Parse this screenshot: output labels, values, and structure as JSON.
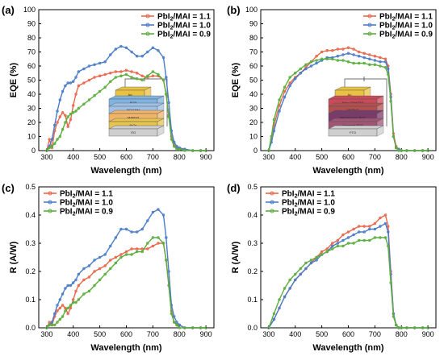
{
  "colors": {
    "s11": "#e8674a",
    "s10": "#4a7cc9",
    "s09": "#5aae3c"
  },
  "chart_data": [
    {
      "panel": "(a)",
      "type": "line",
      "xlabel": "Wavelength (nm)",
      "ylabel": "EQE (%)",
      "xlim": [
        270,
        930
      ],
      "ylim": [
        0,
        100
      ],
      "xticks": [
        300,
        400,
        500,
        600,
        700,
        800,
        900
      ],
      "yticks": [
        0,
        10,
        20,
        30,
        40,
        50,
        60,
        70,
        80,
        90,
        100
      ],
      "legend_position": "top-right",
      "inset": {
        "layers": [
          "Ag",
          "BCP",
          "PC61BM",
          "MAPbI3",
          "NiOx",
          "ITO"
        ]
      },
      "series": [
        {
          "name": "PbI2/MAI = 1.1",
          "color_key": "s11",
          "x": [
            300,
            310,
            320,
            330,
            340,
            350,
            360,
            370,
            380,
            390,
            400,
            410,
            420,
            440,
            460,
            480,
            500,
            520,
            540,
            560,
            580,
            600,
            620,
            640,
            660,
            680,
            700,
            720,
            740,
            750,
            760,
            770,
            780,
            790,
            800,
            820,
            850,
            880,
            900
          ],
          "y": [
            0,
            8,
            2,
            14,
            20,
            24,
            27,
            25,
            17,
            22,
            32,
            40,
            46,
            48,
            50,
            52,
            53,
            54,
            55,
            56,
            56,
            57,
            56,
            55,
            53,
            52,
            53,
            53,
            50,
            40,
            25,
            10,
            4,
            2,
            1,
            1,
            0,
            0,
            0
          ]
        },
        {
          "name": "PbI2/MAI = 1.0",
          "color_key": "s10",
          "x": [
            300,
            310,
            320,
            330,
            340,
            350,
            360,
            370,
            380,
            390,
            400,
            410,
            420,
            440,
            460,
            480,
            500,
            520,
            540,
            560,
            580,
            600,
            620,
            640,
            660,
            680,
            700,
            720,
            740,
            750,
            760,
            770,
            780,
            790,
            800,
            820,
            850,
            880,
            900
          ],
          "y": [
            0,
            3,
            8,
            18,
            28,
            36,
            42,
            46,
            48,
            48,
            49,
            52,
            56,
            58,
            60,
            61,
            62,
            63,
            68,
            72,
            74,
            73,
            70,
            67,
            67,
            70,
            73,
            71,
            66,
            52,
            34,
            14,
            6,
            3,
            2,
            1,
            0,
            0,
            0
          ]
        },
        {
          "name": "PbI2/MAI = 0.9",
          "color_key": "s09",
          "x": [
            300,
            310,
            320,
            330,
            340,
            350,
            360,
            370,
            380,
            390,
            400,
            410,
            420,
            440,
            460,
            480,
            500,
            520,
            540,
            560,
            580,
            600,
            620,
            640,
            660,
            680,
            700,
            720,
            740,
            750,
            760,
            770,
            780,
            790,
            800,
            820,
            850,
            880,
            900
          ],
          "y": [
            0,
            2,
            3,
            5,
            8,
            10,
            15,
            20,
            24,
            26,
            27,
            28,
            30,
            33,
            36,
            39,
            42,
            45,
            49,
            52,
            53,
            54,
            52,
            51,
            50,
            53,
            56,
            54,
            50,
            40,
            24,
            8,
            3,
            1,
            1,
            0,
            0,
            0,
            0
          ]
        }
      ]
    },
    {
      "panel": "(b)",
      "type": "line",
      "xlabel": "Wavelength (nm)",
      "ylabel": "EQE (%)",
      "xlim": [
        270,
        930
      ],
      "ylim": [
        0,
        100
      ],
      "xticks": [
        300,
        400,
        500,
        600,
        700,
        800,
        900
      ],
      "yticks": [
        0,
        10,
        20,
        30,
        40,
        50,
        60,
        70,
        80,
        90,
        100
      ],
      "legend_position": "top-right",
      "inset": {
        "layers": [
          "Au",
          "Spiro-OMeTAD",
          "MAPbI3",
          "Mesoporous TiO2",
          "Compact TiO2",
          "FTO"
        ]
      },
      "series": [
        {
          "name": "PbI2/MAI = 1.1",
          "color_key": "s11",
          "x": [
            300,
            310,
            320,
            340,
            360,
            380,
            400,
            420,
            440,
            460,
            480,
            500,
            520,
            540,
            560,
            580,
            600,
            620,
            640,
            660,
            680,
            700,
            720,
            740,
            750,
            760,
            770,
            780,
            790,
            800,
            820,
            850,
            880,
            900
          ],
          "y": [
            0,
            8,
            18,
            32,
            42,
            48,
            52,
            55,
            59,
            63,
            67,
            70,
            71,
            71,
            72,
            72,
            73,
            72,
            70,
            69,
            68,
            67,
            66,
            65,
            60,
            40,
            12,
            3,
            1,
            0,
            0,
            0,
            0,
            0
          ]
        },
        {
          "name": "PbI2/MAI = 1.0",
          "color_key": "s10",
          "x": [
            300,
            310,
            320,
            340,
            360,
            380,
            400,
            420,
            440,
            460,
            480,
            500,
            520,
            540,
            560,
            580,
            600,
            620,
            640,
            660,
            680,
            700,
            720,
            740,
            750,
            760,
            770,
            780,
            790,
            800,
            820,
            850,
            880,
            900
          ],
          "y": [
            0,
            6,
            14,
            28,
            38,
            46,
            51,
            55,
            58,
            60,
            62,
            64,
            66,
            66,
            67,
            68,
            69,
            68,
            67,
            66,
            65,
            64,
            63,
            63,
            58,
            38,
            10,
            2,
            1,
            0,
            0,
            0,
            0,
            0
          ]
        },
        {
          "name": "PbI2/MAI = 0.9",
          "color_key": "s09",
          "x": [
            300,
            310,
            320,
            340,
            360,
            380,
            400,
            420,
            440,
            460,
            480,
            500,
            520,
            540,
            560,
            580,
            600,
            620,
            640,
            660,
            680,
            700,
            720,
            740,
            750,
            760,
            770,
            780,
            790,
            800,
            820,
            850,
            880,
            900
          ],
          "y": [
            0,
            10,
            22,
            36,
            45,
            52,
            55,
            58,
            61,
            63,
            64,
            65,
            65,
            65,
            64,
            64,
            63,
            62,
            62,
            62,
            61,
            61,
            60,
            59,
            54,
            35,
            10,
            2,
            0,
            0,
            0,
            0,
            0,
            0
          ]
        }
      ]
    },
    {
      "panel": "(c)",
      "type": "line",
      "xlabel": "Wavelength (nm)",
      "ylabel": "R (A/W)",
      "xlim": [
        270,
        930
      ],
      "ylim": [
        0,
        0.5
      ],
      "xticks": [
        300,
        400,
        500,
        600,
        700,
        800,
        900
      ],
      "yticks": [
        0.0,
        0.1,
        0.2,
        0.3,
        0.4,
        0.5
      ],
      "legend_position": "top-left",
      "series": [
        {
          "name": "PbI2/MAI = 1.1",
          "color_key": "s11",
          "x": [
            300,
            310,
            320,
            330,
            340,
            350,
            360,
            370,
            380,
            390,
            400,
            410,
            420,
            440,
            460,
            480,
            500,
            520,
            540,
            560,
            580,
            600,
            620,
            640,
            660,
            680,
            700,
            720,
            740,
            750,
            760,
            770,
            780,
            790,
            800,
            820,
            850,
            880,
            900
          ],
          "y": [
            0,
            0.02,
            0.01,
            0.04,
            0.06,
            0.07,
            0.08,
            0.07,
            0.05,
            0.07,
            0.1,
            0.13,
            0.15,
            0.17,
            0.18,
            0.2,
            0.21,
            0.22,
            0.24,
            0.25,
            0.26,
            0.27,
            0.28,
            0.28,
            0.28,
            0.28,
            0.29,
            0.3,
            0.3,
            0.24,
            0.15,
            0.06,
            0.02,
            0.01,
            0.01,
            0,
            0,
            0,
            0
          ]
        },
        {
          "name": "PbI2/MAI = 1.0",
          "color_key": "s10",
          "x": [
            300,
            310,
            320,
            330,
            340,
            350,
            360,
            370,
            380,
            390,
            400,
            410,
            420,
            440,
            460,
            480,
            500,
            520,
            540,
            560,
            580,
            600,
            620,
            640,
            660,
            680,
            700,
            720,
            740,
            750,
            760,
            770,
            780,
            790,
            800,
            820,
            850,
            880,
            900
          ],
          "y": [
            0,
            0.01,
            0.02,
            0.05,
            0.08,
            0.1,
            0.12,
            0.14,
            0.15,
            0.15,
            0.16,
            0.17,
            0.19,
            0.21,
            0.22,
            0.24,
            0.25,
            0.26,
            0.29,
            0.32,
            0.35,
            0.35,
            0.34,
            0.34,
            0.35,
            0.38,
            0.41,
            0.42,
            0.4,
            0.32,
            0.2,
            0.08,
            0.04,
            0.02,
            0.01,
            0,
            0,
            0,
            0
          ]
        },
        {
          "name": "PbI2/MAI = 0.9",
          "color_key": "s09",
          "x": [
            300,
            310,
            320,
            330,
            340,
            350,
            360,
            370,
            380,
            390,
            400,
            410,
            420,
            440,
            460,
            480,
            500,
            520,
            540,
            560,
            580,
            600,
            620,
            640,
            660,
            680,
            700,
            720,
            740,
            750,
            760,
            770,
            780,
            790,
            800,
            820,
            850,
            880,
            900
          ],
          "y": [
            0,
            0.01,
            0.01,
            0.01,
            0.02,
            0.03,
            0.04,
            0.06,
            0.07,
            0.08,
            0.09,
            0.09,
            0.1,
            0.12,
            0.13,
            0.15,
            0.17,
            0.19,
            0.21,
            0.23,
            0.25,
            0.26,
            0.26,
            0.27,
            0.27,
            0.3,
            0.32,
            0.32,
            0.3,
            0.24,
            0.15,
            0.05,
            0.02,
            0.01,
            0,
            0,
            0,
            0,
            0
          ]
        }
      ]
    },
    {
      "panel": "(d)",
      "type": "line",
      "xlabel": "Wavelength (nm)",
      "ylabel": "R (A/W)",
      "xlim": [
        270,
        930
      ],
      "ylim": [
        0,
        0.5
      ],
      "xticks": [
        300,
        400,
        500,
        600,
        700,
        800,
        900
      ],
      "yticks": [
        0.0,
        0.1,
        0.2,
        0.3,
        0.4,
        0.5
      ],
      "legend_position": "top-left",
      "series": [
        {
          "name": "PbI2/MAI = 1.1",
          "color_key": "s11",
          "x": [
            300,
            320,
            340,
            360,
            380,
            400,
            420,
            440,
            460,
            480,
            500,
            520,
            540,
            560,
            580,
            600,
            620,
            640,
            660,
            680,
            700,
            720,
            740,
            750,
            760,
            770,
            780,
            790,
            800,
            820,
            850,
            880,
            900
          ],
          "y": [
            0,
            0.03,
            0.07,
            0.11,
            0.14,
            0.17,
            0.19,
            0.21,
            0.23,
            0.25,
            0.27,
            0.28,
            0.3,
            0.31,
            0.33,
            0.34,
            0.35,
            0.36,
            0.36,
            0.36,
            0.37,
            0.39,
            0.4,
            0.36,
            0.2,
            0.05,
            0.01,
            0,
            0,
            0,
            0,
            0,
            0
          ]
        },
        {
          "name": "PbI2/MAI = 1.0",
          "color_key": "s10",
          "x": [
            300,
            320,
            340,
            360,
            380,
            400,
            420,
            440,
            460,
            480,
            500,
            520,
            540,
            560,
            580,
            600,
            620,
            640,
            660,
            680,
            700,
            720,
            740,
            750,
            760,
            770,
            780,
            790,
            800,
            820,
            850,
            880,
            900
          ],
          "y": [
            0,
            0.03,
            0.07,
            0.11,
            0.14,
            0.17,
            0.19,
            0.21,
            0.23,
            0.24,
            0.26,
            0.27,
            0.29,
            0.3,
            0.31,
            0.32,
            0.33,
            0.34,
            0.34,
            0.35,
            0.35,
            0.36,
            0.37,
            0.34,
            0.19,
            0.05,
            0.01,
            0,
            0,
            0,
            0,
            0,
            0
          ]
        },
        {
          "name": "PbI2/MAI = 0.9",
          "color_key": "s09",
          "x": [
            300,
            320,
            340,
            360,
            380,
            400,
            420,
            440,
            460,
            480,
            500,
            520,
            540,
            560,
            580,
            600,
            620,
            640,
            660,
            680,
            700,
            720,
            740,
            750,
            760,
            770,
            780,
            790,
            800,
            820,
            850,
            880,
            900
          ],
          "y": [
            0,
            0.05,
            0.1,
            0.14,
            0.17,
            0.19,
            0.21,
            0.23,
            0.24,
            0.25,
            0.26,
            0.27,
            0.28,
            0.29,
            0.29,
            0.3,
            0.3,
            0.31,
            0.31,
            0.31,
            0.32,
            0.32,
            0.32,
            0.29,
            0.16,
            0.04,
            0.01,
            0,
            0,
            0,
            0,
            0,
            0
          ]
        }
      ]
    }
  ]
}
